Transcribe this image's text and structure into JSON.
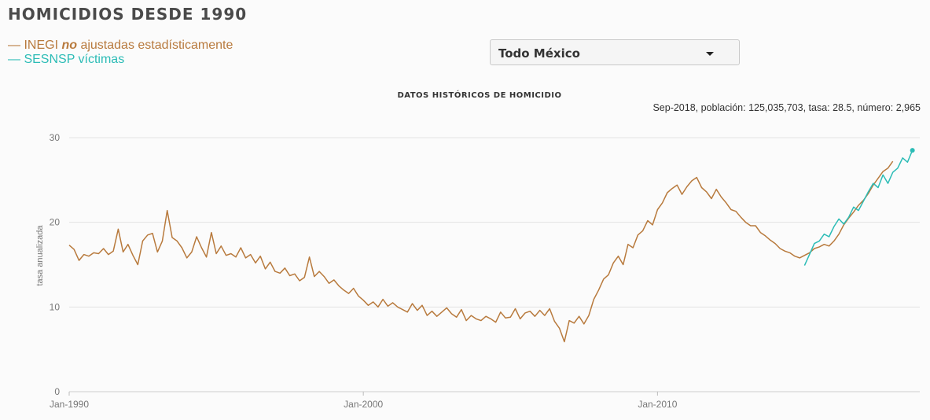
{
  "title": "HOMICIDIOS DESDE 1990",
  "legend": {
    "inegi": {
      "prefix": "— INEGI ",
      "emphasis": "no",
      "suffix": " ajustadas estadísticamente",
      "color": "#b87a3d"
    },
    "sesnsp": {
      "label": "— SESNSP víctimas",
      "color": "#2cbcb6"
    }
  },
  "selector": {
    "value": "Todo México"
  },
  "readout": "Sep-2018, población: 125,035,703, tasa: 28.5, número: 2,965",
  "chart_data": {
    "type": "line",
    "title": "DATOS HISTÓRICOS DE HOMICIDIO",
    "xlabel": "",
    "ylabel": "tasa anualizada",
    "ylim": [
      0,
      30
    ],
    "yticks": [
      0,
      10,
      20,
      30
    ],
    "xlim": [
      "1990-01",
      "2018-12"
    ],
    "xticks": [
      {
        "value": "1990-01",
        "label": "Jan-1990"
      },
      {
        "value": "2000-01",
        "label": "Jan-2000"
      },
      {
        "value": "2010-01",
        "label": "Jan-2010"
      }
    ],
    "grid": true,
    "series": [
      {
        "name": "INEGI no ajustadas estadísticamente",
        "color": "#b87a3d",
        "points": [
          [
            "1990-01",
            17.3
          ],
          [
            "1990-03",
            16.8
          ],
          [
            "1990-05",
            15.5
          ],
          [
            "1990-07",
            16.2
          ],
          [
            "1990-09",
            16.0
          ],
          [
            "1990-11",
            16.4
          ],
          [
            "1991-01",
            16.3
          ],
          [
            "1991-03",
            16.9
          ],
          [
            "1991-05",
            16.2
          ],
          [
            "1991-07",
            16.6
          ],
          [
            "1991-09",
            19.2
          ],
          [
            "1991-11",
            16.5
          ],
          [
            "1992-01",
            17.4
          ],
          [
            "1992-03",
            16.1
          ],
          [
            "1992-05",
            15.0
          ],
          [
            "1992-07",
            17.8
          ],
          [
            "1992-09",
            18.5
          ],
          [
            "1992-11",
            18.7
          ],
          [
            "1993-01",
            16.5
          ],
          [
            "1993-03",
            17.8
          ],
          [
            "1993-05",
            21.4
          ],
          [
            "1993-07",
            18.2
          ],
          [
            "1993-09",
            17.8
          ],
          [
            "1993-11",
            17.0
          ],
          [
            "1994-01",
            15.8
          ],
          [
            "1994-03",
            16.5
          ],
          [
            "1994-05",
            18.3
          ],
          [
            "1994-07",
            17.0
          ],
          [
            "1994-09",
            15.9
          ],
          [
            "1994-11",
            18.8
          ],
          [
            "1995-01",
            16.3
          ],
          [
            "1995-03",
            17.2
          ],
          [
            "1995-05",
            16.1
          ],
          [
            "1995-07",
            16.3
          ],
          [
            "1995-09",
            15.9
          ],
          [
            "1995-11",
            17.0
          ],
          [
            "1996-01",
            15.8
          ],
          [
            "1996-03",
            16.2
          ],
          [
            "1996-05",
            15.2
          ],
          [
            "1996-07",
            16.0
          ],
          [
            "1996-09",
            14.5
          ],
          [
            "1996-11",
            15.3
          ],
          [
            "1997-01",
            14.2
          ],
          [
            "1997-03",
            14.0
          ],
          [
            "1997-05",
            14.6
          ],
          [
            "1997-07",
            13.7
          ],
          [
            "1997-09",
            13.9
          ],
          [
            "1997-11",
            13.1
          ],
          [
            "1998-01",
            13.5
          ],
          [
            "1998-03",
            15.9
          ],
          [
            "1998-05",
            13.6
          ],
          [
            "1998-07",
            14.2
          ],
          [
            "1998-09",
            13.6
          ],
          [
            "1998-11",
            12.8
          ],
          [
            "1999-01",
            13.2
          ],
          [
            "1999-03",
            12.5
          ],
          [
            "1999-05",
            12.0
          ],
          [
            "1999-07",
            11.6
          ],
          [
            "1999-09",
            12.2
          ],
          [
            "1999-11",
            11.3
          ],
          [
            "2000-01",
            10.8
          ],
          [
            "2000-03",
            10.2
          ],
          [
            "2000-05",
            10.6
          ],
          [
            "2000-07",
            10.0
          ],
          [
            "2000-09",
            10.9
          ],
          [
            "2000-11",
            10.1
          ],
          [
            "2001-01",
            10.5
          ],
          [
            "2001-03",
            10.0
          ],
          [
            "2001-05",
            9.7
          ],
          [
            "2001-07",
            9.4
          ],
          [
            "2001-09",
            10.4
          ],
          [
            "2001-11",
            9.6
          ],
          [
            "2002-01",
            10.2
          ],
          [
            "2002-03",
            9.0
          ],
          [
            "2002-05",
            9.5
          ],
          [
            "2002-07",
            8.9
          ],
          [
            "2002-09",
            9.4
          ],
          [
            "2002-11",
            9.9
          ],
          [
            "2003-01",
            9.2
          ],
          [
            "2003-03",
            8.8
          ],
          [
            "2003-05",
            9.7
          ],
          [
            "2003-07",
            8.4
          ],
          [
            "2003-09",
            9.0
          ],
          [
            "2003-11",
            8.6
          ],
          [
            "2004-01",
            8.4
          ],
          [
            "2004-03",
            8.9
          ],
          [
            "2004-05",
            8.6
          ],
          [
            "2004-07",
            8.2
          ],
          [
            "2004-09",
            9.4
          ],
          [
            "2004-11",
            8.7
          ],
          [
            "2005-01",
            8.8
          ],
          [
            "2005-03",
            9.8
          ],
          [
            "2005-05",
            8.6
          ],
          [
            "2005-07",
            9.3
          ],
          [
            "2005-09",
            9.5
          ],
          [
            "2005-11",
            8.9
          ],
          [
            "2006-01",
            9.6
          ],
          [
            "2006-03",
            9.0
          ],
          [
            "2006-05",
            9.8
          ],
          [
            "2006-07",
            8.3
          ],
          [
            "2006-09",
            7.5
          ],
          [
            "2006-11",
            5.9
          ],
          [
            "2007-01",
            8.4
          ],
          [
            "2007-03",
            8.1
          ],
          [
            "2007-05",
            8.9
          ],
          [
            "2007-07",
            8.0
          ],
          [
            "2007-09",
            9.0
          ],
          [
            "2007-11",
            10.9
          ],
          [
            "2008-01",
            12.0
          ],
          [
            "2008-03",
            13.3
          ],
          [
            "2008-05",
            13.8
          ],
          [
            "2008-07",
            15.2
          ],
          [
            "2008-09",
            16.0
          ],
          [
            "2008-11",
            15.0
          ],
          [
            "2009-01",
            17.4
          ],
          [
            "2009-03",
            17.0
          ],
          [
            "2009-05",
            18.5
          ],
          [
            "2009-07",
            19.0
          ],
          [
            "2009-09",
            20.2
          ],
          [
            "2009-11",
            19.7
          ],
          [
            "2010-01",
            21.5
          ],
          [
            "2010-03",
            22.3
          ],
          [
            "2010-05",
            23.5
          ],
          [
            "2010-07",
            24.0
          ],
          [
            "2010-09",
            24.4
          ],
          [
            "2010-11",
            23.3
          ],
          [
            "2011-01",
            24.2
          ],
          [
            "2011-03",
            24.9
          ],
          [
            "2011-05",
            25.3
          ],
          [
            "2011-07",
            24.1
          ],
          [
            "2011-09",
            23.6
          ],
          [
            "2011-11",
            22.8
          ],
          [
            "2012-01",
            23.9
          ],
          [
            "2012-03",
            23.0
          ],
          [
            "2012-05",
            22.3
          ],
          [
            "2012-07",
            21.5
          ],
          [
            "2012-09",
            21.3
          ],
          [
            "2012-11",
            20.6
          ],
          [
            "2013-01",
            20.0
          ],
          [
            "2013-03",
            19.6
          ],
          [
            "2013-05",
            19.6
          ],
          [
            "2013-07",
            18.8
          ],
          [
            "2013-09",
            18.4
          ],
          [
            "2013-11",
            17.9
          ],
          [
            "2014-01",
            17.5
          ],
          [
            "2014-03",
            16.9
          ],
          [
            "2014-05",
            16.6
          ],
          [
            "2014-07",
            16.4
          ],
          [
            "2014-09",
            16.0
          ],
          [
            "2014-11",
            15.8
          ],
          [
            "2015-01",
            16.1
          ],
          [
            "2015-03",
            16.4
          ],
          [
            "2015-05",
            16.9
          ],
          [
            "2015-07",
            17.1
          ],
          [
            "2015-09",
            17.4
          ],
          [
            "2015-11",
            17.2
          ],
          [
            "2016-01",
            17.8
          ],
          [
            "2016-03",
            18.6
          ],
          [
            "2016-05",
            19.7
          ],
          [
            "2016-07",
            20.5
          ],
          [
            "2016-09",
            21.2
          ],
          [
            "2016-11",
            22.0
          ],
          [
            "2017-01",
            22.6
          ],
          [
            "2017-03",
            23.4
          ],
          [
            "2017-05",
            24.4
          ],
          [
            "2017-07",
            25.2
          ],
          [
            "2017-09",
            26.0
          ],
          [
            "2017-11",
            26.4
          ],
          [
            "2018-01",
            27.2
          ]
        ]
      },
      {
        "name": "SESNSP víctimas",
        "color": "#2cbcb6",
        "points": [
          [
            "2015-01",
            14.9
          ],
          [
            "2015-03",
            16.2
          ],
          [
            "2015-05",
            17.5
          ],
          [
            "2015-07",
            17.8
          ],
          [
            "2015-09",
            18.6
          ],
          [
            "2015-11",
            18.3
          ],
          [
            "2016-01",
            19.5
          ],
          [
            "2016-03",
            20.4
          ],
          [
            "2016-05",
            19.8
          ],
          [
            "2016-07",
            20.6
          ],
          [
            "2016-09",
            21.8
          ],
          [
            "2016-11",
            21.4
          ],
          [
            "2017-01",
            22.5
          ],
          [
            "2017-03",
            23.6
          ],
          [
            "2017-05",
            24.6
          ],
          [
            "2017-07",
            24.1
          ],
          [
            "2017-09",
            25.6
          ],
          [
            "2017-11",
            24.6
          ],
          [
            "2018-01",
            25.9
          ],
          [
            "2018-03",
            26.4
          ],
          [
            "2018-05",
            27.6
          ],
          [
            "2018-07",
            27.1
          ],
          [
            "2018-09",
            28.5
          ]
        ]
      }
    ]
  }
}
